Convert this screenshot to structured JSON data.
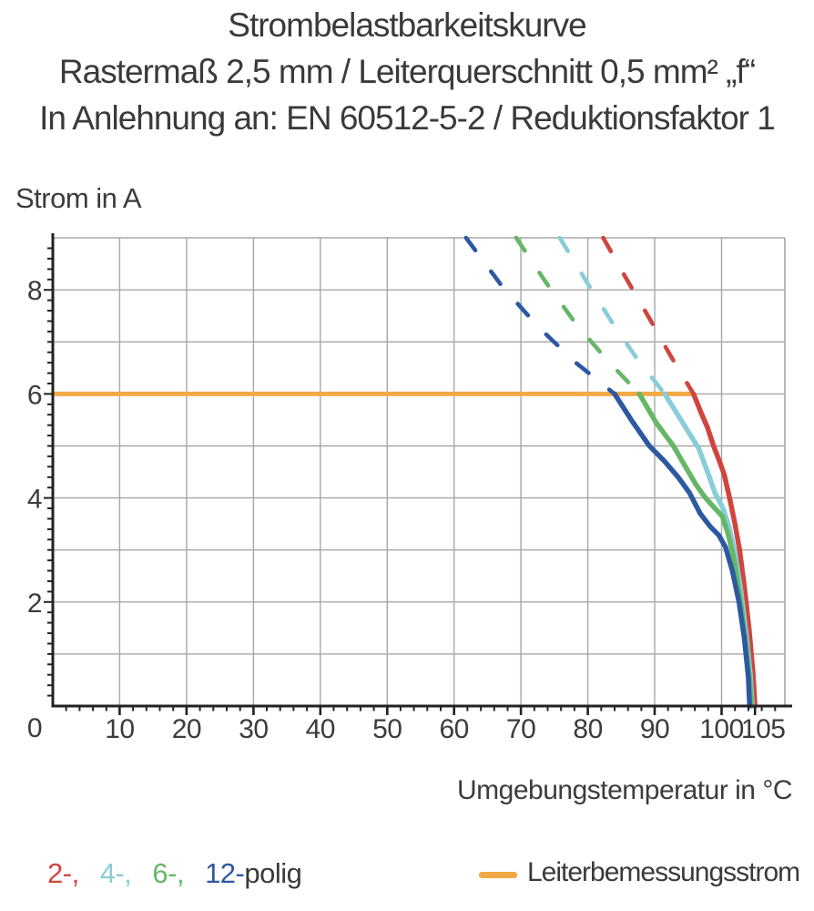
{
  "title": {
    "line1": "Strombelastbarkeitskurve",
    "line2": "Rastermaß 2,5 mm / Leiterquerschnitt 0,5 mm² „f“",
    "line3": "In Anlehnung an: EN 60512-5-2 / Reduktionsfaktor 1"
  },
  "legend": {
    "items": [
      {
        "label": "2-,",
        "poles": 2,
        "color": "#d0453e"
      },
      {
        "label": "4-,",
        "poles": 4,
        "color": "#88cdd8"
      },
      {
        "label": "6-,",
        "poles": 6,
        "color": "#65b766"
      },
      {
        "label": "12-",
        "poles": 12,
        "color": "#2d58a2"
      }
    ],
    "suffix": "polig",
    "rated_label": "Leiterbemessungsstrom",
    "rated_color": "#f2a844"
  },
  "colors": {
    "grid": "#a7a7a7",
    "axis": "#222222",
    "text": "#3c3c3c",
    "rated_orange": "#f2a844"
  },
  "chart_data": {
    "type": "line",
    "title": "Strombelastbarkeitskurve",
    "xlabel": "Umgebungstemperatur in °C",
    "ylabel": "Strom in A",
    "xlim": [
      0,
      110
    ],
    "ylim": [
      0,
      9
    ],
    "grid": true,
    "x_major_ticks": [
      10,
      20,
      30,
      40,
      50,
      60,
      70,
      80,
      90,
      100,
      105
    ],
    "x_minor_step": 2,
    "x_gridlines": [
      10,
      20,
      30,
      40,
      50,
      60,
      70,
      80,
      90,
      100
    ],
    "y_major_ticks": [
      0,
      2,
      4,
      6,
      8
    ],
    "y_minor_step": 0.2,
    "y_gridlines": [
      1,
      2,
      3,
      4,
      5,
      6,
      7,
      8
    ],
    "rated_line": {
      "label": "Leiterbemessungsstrom",
      "current_a": 6,
      "t_start": 0,
      "t_end": 95.8,
      "color": "#f2a844"
    },
    "series": [
      {
        "name": "2-polig",
        "color": "#d0453e",
        "dashed": [
          [
            82.3,
            9.0
          ],
          [
            85.6,
            8.25
          ],
          [
            89.0,
            7.5
          ],
          [
            92.3,
            6.75
          ],
          [
            95.8,
            6.0
          ]
        ],
        "solid": [
          [
            95.8,
            6.0
          ],
          [
            96.9,
            5.65
          ],
          [
            97.9,
            5.35
          ],
          [
            98.8,
            5.0
          ],
          [
            99.7,
            4.7
          ],
          [
            100.4,
            4.45
          ],
          [
            101.2,
            4.0
          ],
          [
            102.0,
            3.5
          ],
          [
            102.7,
            3.0
          ],
          [
            103.4,
            2.3
          ],
          [
            104.1,
            1.5
          ],
          [
            104.7,
            0.65
          ],
          [
            105.0,
            0.0
          ]
        ]
      },
      {
        "name": "4-polig",
        "color": "#88cdd8",
        "dashed": [
          [
            75.8,
            9.0
          ],
          [
            79.6,
            8.2
          ],
          [
            83.5,
            7.4
          ],
          [
            87.5,
            6.65
          ],
          [
            91.5,
            6.0
          ]
        ],
        "solid": [
          [
            91.5,
            6.0
          ],
          [
            93.2,
            5.65
          ],
          [
            94.9,
            5.3
          ],
          [
            96.6,
            4.95
          ],
          [
            97.9,
            4.5
          ],
          [
            99.0,
            4.1
          ],
          [
            100.2,
            3.8
          ],
          [
            101.1,
            3.45
          ],
          [
            102.0,
            2.95
          ],
          [
            102.9,
            2.2
          ],
          [
            103.7,
            1.35
          ],
          [
            104.3,
            0.6
          ],
          [
            104.6,
            0.0
          ]
        ]
      },
      {
        "name": "6-polig",
        "color": "#65b766",
        "dashed": [
          [
            69.3,
            9.0
          ],
          [
            73.7,
            8.15
          ],
          [
            78.2,
            7.35
          ],
          [
            82.9,
            6.65
          ],
          [
            87.7,
            6.0
          ]
        ],
        "solid": [
          [
            87.7,
            6.0
          ],
          [
            90.2,
            5.45
          ],
          [
            92.8,
            5.0
          ],
          [
            94.6,
            4.6
          ],
          [
            96.2,
            4.25
          ],
          [
            97.6,
            4.0
          ],
          [
            99.0,
            3.8
          ],
          [
            100.1,
            3.65
          ],
          [
            101.0,
            3.3
          ],
          [
            101.9,
            2.8
          ],
          [
            102.8,
            2.05
          ],
          [
            103.6,
            1.25
          ],
          [
            104.2,
            0.5
          ],
          [
            104.5,
            0.0
          ]
        ]
      },
      {
        "name": "12-polig",
        "color": "#2d58a2",
        "dashed": [
          [
            61.8,
            9.0
          ],
          [
            67.0,
            8.1
          ],
          [
            72.5,
            7.3
          ],
          [
            78.2,
            6.6
          ],
          [
            84.0,
            6.0
          ]
        ],
        "solid": [
          [
            84.0,
            6.0
          ],
          [
            86.5,
            5.5
          ],
          [
            89.2,
            5.0
          ],
          [
            91.5,
            4.7
          ],
          [
            93.5,
            4.4
          ],
          [
            95.2,
            4.1
          ],
          [
            96.8,
            3.7
          ],
          [
            98.3,
            3.45
          ],
          [
            99.6,
            3.28
          ],
          [
            100.6,
            3.05
          ],
          [
            101.6,
            2.6
          ],
          [
            102.6,
            2.0
          ],
          [
            103.4,
            1.3
          ],
          [
            104.0,
            0.55
          ],
          [
            104.2,
            0.0
          ]
        ]
      }
    ]
  }
}
